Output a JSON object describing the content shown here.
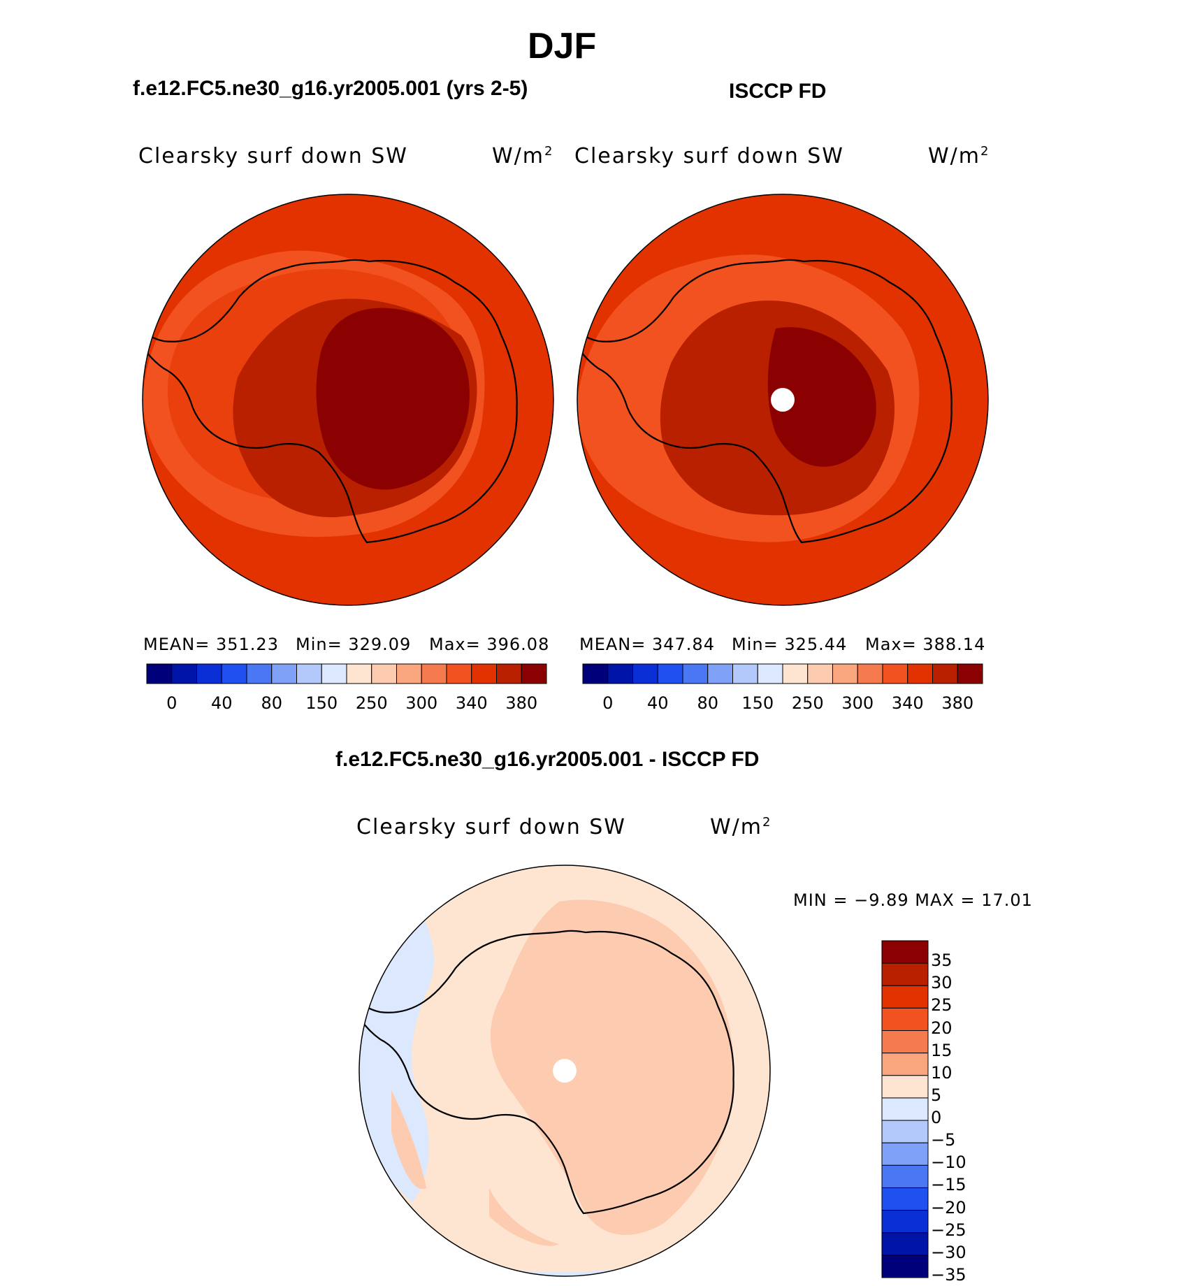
{
  "figure": {
    "season_title": "DJF",
    "model_title": "f.e12.FC5.ne30_g16.yr2005.001 (yrs 2-5)",
    "obs_title": "ISCCP FD",
    "diff_title": "f.e12.FC5.ne30_g16.yr2005.001 - ISCCP FD"
  },
  "panels": {
    "model": {
      "variable": "Clearsky surf down SW",
      "units": "W/m",
      "units_exp": "2",
      "mean_text": "MEAN=  351.23",
      "min_text": "Min=  329.09",
      "max_text": "Max=  396.08"
    },
    "obs": {
      "variable": "Clearsky surf down SW",
      "units": "W/m",
      "units_exp": "2",
      "mean_text": "MEAN=  347.84",
      "min_text": "Min=  325.44",
      "max_text": "Max=  388.14"
    },
    "diff": {
      "variable": "Clearsky surf down SW",
      "units": "W/m",
      "units_exp": "2",
      "minmax_text": "MIN  =   −9.89  MAX  =    17.01"
    }
  },
  "chart_data": [
    {
      "type": "map",
      "title": "f.e12.FC5.ne30_g16.yr2005.001 (yrs 2-5)",
      "variable": "Clearsky surf down SW",
      "units": "W/m2",
      "projection": "south polar stereographic",
      "mean": 351.23,
      "min": 329.09,
      "max": 396.08,
      "colorbar_ticks": [
        "0",
        "40",
        "80",
        "150",
        "250",
        "300",
        "340",
        "380"
      ],
      "colorbar_colors": [
        "#00007a",
        "#0015a8",
        "#0a2fd6",
        "#1f50f0",
        "#4a78f5",
        "#7fa2f8",
        "#b3c8fb",
        "#dce8fd",
        "#fde5d2",
        "#fccbb0",
        "#f9a57d",
        "#f57a4d",
        "#f2521f",
        "#e23200",
        "#b82000",
        "#8b0000"
      ]
    },
    {
      "type": "map",
      "title": "ISCCP FD",
      "variable": "Clearsky surf down SW",
      "units": "W/m2",
      "projection": "south polar stereographic",
      "mean": 347.84,
      "min": 325.44,
      "max": 388.14,
      "colorbar_ticks": [
        "0",
        "40",
        "80",
        "150",
        "250",
        "300",
        "340",
        "380"
      ]
    },
    {
      "type": "map",
      "title": "f.e12.FC5.ne30_g16.yr2005.001 - ISCCP FD",
      "variable": "Clearsky surf down SW",
      "units": "W/m2",
      "projection": "south polar stereographic",
      "min": -9.89,
      "max": 17.01,
      "colorbar_ticks": [
        "35",
        "30",
        "25",
        "20",
        "15",
        "10",
        "5",
        "0",
        "−5",
        "−10",
        "−15",
        "−20",
        "−25",
        "−30",
        "−35"
      ],
      "colorbar_colors": [
        "#8b0000",
        "#b82000",
        "#e23200",
        "#f2521f",
        "#f57a4d",
        "#f9a57d",
        "#fde5d2",
        "#dce8fd",
        "#b3c8fb",
        "#7fa2f8",
        "#4a78f5",
        "#1f50f0",
        "#0a2fd6",
        "#0015a8",
        "#00007a"
      ]
    }
  ]
}
